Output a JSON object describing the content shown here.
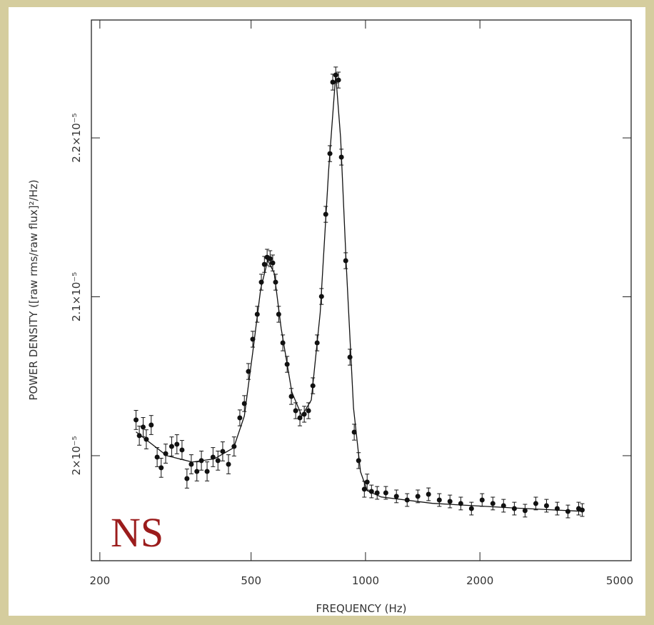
{
  "chart_data": {
    "type": "scatter",
    "x_label": "FREQUENCY (Hz)",
    "y_label": "POWER DENSITY ([raw rms/raw flux]²/Hz)",
    "annotation": "NS",
    "annotation_color": "#9b1c1c",
    "xscale": "log",
    "xlim": [
      190,
      5000
    ],
    "ylim": [
      1.9339e-05,
      2.2742e-05
    ],
    "xticks": [
      200,
      500,
      1000,
      2000,
      5000
    ],
    "yticks": [
      {
        "value": 2e-05,
        "label": "2×10⁻⁵"
      },
      {
        "value": 2.1e-05,
        "label": "2.1×10⁻⁵"
      },
      {
        "value": 2.2e-05,
        "label": "2.2×10⁻⁵"
      }
    ],
    "series": [
      {
        "type": "scatter",
        "color": "#111111",
        "x": [
          249,
          254,
          260,
          265,
          273,
          283,
          290,
          298,
          309,
          319,
          329,
          339,
          348,
          360,
          370,
          383,
          397,
          409,
          421,
          436,
          451,
          467,
          480,
          492,
          505,
          519,
          532,
          542,
          551,
          561,
          570,
          580,
          591,
          606,
          622,
          638,
          655,
          672,
          690,
          708,
          727,
          746,
          766,
          786,
          806,
          820,
          835,
          849,
          864,
          887,
          910,
          934,
          959,
          993,
          1010,
          1037,
          1073,
          1131,
          1206,
          1287,
          1373,
          1465,
          1564,
          1668,
          1781,
          1900,
          2027,
          2163,
          2308,
          2464,
          2629,
          2806,
          2994,
          3195,
          3409,
          3638,
          3717
        ],
        "values": [
          2.0225e-05,
          2.0126e-05,
          2.018e-05,
          2.0103e-05,
          2.0193e-05,
          1.9991e-05,
          1.9924e-05,
          2.0013e-05,
          2.0058e-05,
          2.0072e-05,
          2.0036e-05,
          1.9856e-05,
          1.9946e-05,
          1.9901e-05,
          1.9969e-05,
          1.9901e-05,
          1.9991e-05,
          1.9969e-05,
          2.0027e-05,
          1.9946e-05,
          2.0058e-05,
          2.0238e-05,
          2.0328e-05,
          2.053e-05,
          2.0733e-05,
          2.089e-05,
          2.1092e-05,
          2.1204e-05,
          2.1249e-05,
          2.124e-05,
          2.1213e-05,
          2.1092e-05,
          2.089e-05,
          2.071e-05,
          2.0575e-05,
          2.0373e-05,
          2.0283e-05,
          2.0238e-05,
          2.0261e-05,
          2.0283e-05,
          2.044e-05,
          2.071e-05,
          2.1002e-05,
          2.1519e-05,
          2.1901e-05,
          2.2351e-05,
          2.2396e-05,
          2.2364e-05,
          2.1879e-05,
          2.1227e-05,
          2.062e-05,
          2.0148e-05,
          1.9969e-05,
          1.9789e-05,
          1.9834e-05,
          1.9775e-05,
          1.9766e-05,
          1.9766e-05,
          1.9744e-05,
          1.9721e-05,
          1.9744e-05,
          1.9757e-05,
          1.9721e-05,
          1.9712e-05,
          1.9699e-05,
          1.9667e-05,
          1.9721e-05,
          1.9699e-05,
          1.9685e-05,
          1.9667e-05,
          1.9654e-05,
          1.9699e-05,
          1.9685e-05,
          1.9667e-05,
          1.9649e-05,
          1.9667e-05,
          1.9658e-05
        ],
        "errors": [
          6e-08,
          6e-08,
          6e-08,
          6e-08,
          6e-08,
          6e-08,
          6e-08,
          6e-08,
          6e-08,
          6e-08,
          6e-08,
          6e-08,
          6e-08,
          6e-08,
          6e-08,
          6e-08,
          6e-08,
          6e-08,
          6e-08,
          6e-08,
          6e-08,
          5e-08,
          5e-08,
          5e-08,
          5e-08,
          5e-08,
          5e-08,
          5e-08,
          5e-08,
          5e-08,
          5e-08,
          5e-08,
          5e-08,
          5e-08,
          5e-08,
          5e-08,
          5e-08,
          5e-08,
          5e-08,
          5e-08,
          5e-08,
          5e-08,
          5e-08,
          5e-08,
          5e-08,
          5e-08,
          5e-08,
          5e-08,
          5e-08,
          5e-08,
          5e-08,
          5e-08,
          5e-08,
          5e-08,
          5e-08,
          4e-08,
          4e-08,
          4e-08,
          4e-08,
          4e-08,
          4e-08,
          4e-08,
          4e-08,
          4e-08,
          4e-08,
          4e-08,
          4e-08,
          4e-08,
          4e-08,
          4e-08,
          4e-08,
          4e-08,
          4e-08,
          4e-08,
          4e-08,
          4e-08,
          4e-08
        ]
      },
      {
        "type": "line",
        "color": "#111111",
        "x": [
          249,
          300,
          350,
          400,
          450,
          480,
          505,
          530,
          553,
          575,
          600,
          640,
          680,
          720,
          760,
          800,
          835,
          860,
          890,
          930,
          970,
          1010,
          1100,
          1500,
          2500,
          3717
        ],
        "values": [
          2.015e-05,
          2e-05,
          1.996e-05,
          1.998e-05,
          2.005e-05,
          2.025e-05,
          2.065e-05,
          2.105e-05,
          2.123e-05,
          2.115e-05,
          2.08e-05,
          2.04e-05,
          2.025e-05,
          2.035e-05,
          2.09e-05,
          2.18e-05,
          2.24e-05,
          2.2e-05,
          2.12e-05,
          2.03e-05,
          1.99e-05,
          1.978e-05,
          1.974e-05,
          1.97e-05,
          1.967e-05,
          1.965e-05
        ]
      }
    ]
  }
}
